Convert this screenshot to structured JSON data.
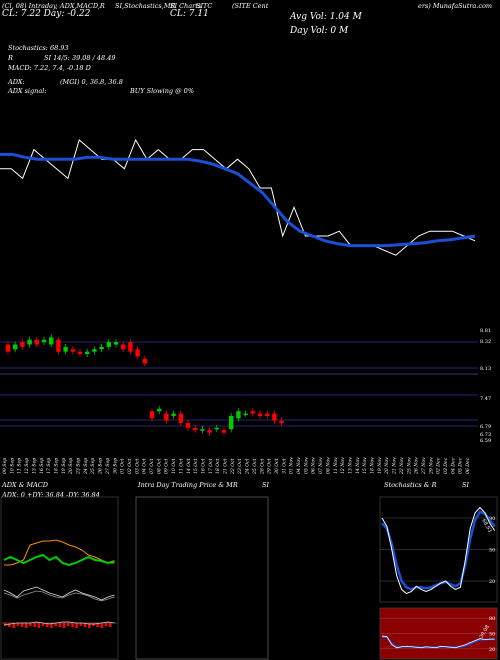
{
  "header": {
    "line1_left": "(Cl, 08) Intraday, ADX,MACD,R",
    "line1_mid1": "SI,Stochastics,MR",
    "line1_mid2": "SI Charts",
    "line1_mid3": "SITC",
    "line1_mid4": "(SITE Cent",
    "line1_right": "ers) MunafaSutra.com",
    "line2_left": "CL: 7.22  Day: -0.22",
    "line2_mid": "CL: 7.11",
    "avg_vol": "Avg Vol: 1.04  M",
    "day_vol": "Day Vol: 0  M",
    "stoch": "Stochastics: 68.93",
    "rsi_label": "R",
    "rsi": "SI 14/5: 39.08 / 48.49",
    "macd": "MACD: 7.22, 7.4, -0.18  D",
    "adx_label": "ADX:",
    "adx_mgi": "(MGI) 0, 36.8, 36.8",
    "adx_signal": "ADX signal:",
    "signal": "BUY Slowing @ 0%"
  },
  "price_axis": [
    "8.81",
    "8.32",
    "8.13",
    "7.47",
    "6.79",
    "6.73",
    "6.59"
  ],
  "dates": [
    "09 Sep",
    "10 Sep",
    "11 Sep",
    "12 Sep",
    "13 Sep",
    "16 Sep",
    "17 Sep",
    "18 Sep",
    "19 Sep",
    "20 Sep",
    "23 Sep",
    "24 Sep",
    "25 Sep",
    "26 Sep",
    "27 Sep",
    "30 Sep",
    "01 Oct",
    "02 Oct",
    "03 Oct",
    "04 Oct",
    "07 Oct",
    "08 Oct",
    "09 Oct",
    "10 Oct",
    "11 Oct",
    "14 Oct",
    "15 Oct",
    "16 Oct",
    "17 Oct",
    "18 Oct",
    "21 Oct",
    "22 Oct",
    "23 Oct",
    "24 Oct",
    "25 Oct",
    "28 Oct",
    "29 Oct",
    "30 Oct",
    "31 Oct",
    "01 Nov",
    "04 Nov",
    "05 Nov",
    "06 Nov",
    "07 Nov",
    "08 Nov",
    "11 Nov",
    "12 Nov",
    "13 Nov",
    "14 Nov",
    "15 Nov",
    "18 Nov",
    "19 Nov",
    "20 Nov",
    "21 Nov",
    "22 Nov",
    "25 Nov",
    "26 Nov",
    "27 Nov",
    "29 Nov",
    "02 Dec",
    "03 Dec",
    "04 Dec",
    "05 Dec",
    "06 Dec"
  ],
  "panels": {
    "adx_title": "ADX & MACD",
    "adx_vals": "ADX: 0  +DY: 36.84  -DY: 36.84",
    "mrsi_title": "Intra Day Trading Price & MR",
    "mrsi_title2": "SI",
    "stoch_title": "Stochastics & R",
    "stoch_title2": "SI",
    "stoch_ticks": [
      "80",
      "50",
      "20"
    ],
    "rsi_ticks": [
      "80",
      "50",
      "20"
    ],
    "stoch_val": "68.93",
    "rsi_val": "39.08"
  },
  "colors": {
    "up": "#00cc00",
    "down": "#ff0000",
    "ma": "#1a4fd6",
    "grid": "#333399",
    "rsi_bg": "#8b0000"
  },
  "chart_data": [
    {
      "type": "line",
      "title": "SITC price with moving average",
      "series": [
        {
          "name": "close",
          "values": [
            9.0,
            9.0,
            8.9,
            9.2,
            9.1,
            9.0,
            8.9,
            9.3,
            9.2,
            9.1,
            9.1,
            9.0,
            9.3,
            9.1,
            9.2,
            9.1,
            9.1,
            9.2,
            9.2,
            9.1,
            9.0,
            9.1,
            9.0,
            8.8,
            8.8,
            8.3,
            8.6,
            8.3,
            8.3,
            8.3,
            8.35,
            8.2,
            8.2,
            8.2,
            8.15,
            8.1,
            8.2,
            8.3,
            8.35,
            8.35,
            8.35,
            8.3,
            8.25
          ]
        },
        {
          "name": "ma",
          "values": [
            9.15,
            9.15,
            9.12,
            9.1,
            9.1,
            9.1,
            9.1,
            9.12,
            9.12,
            9.1,
            9.1,
            9.1,
            9.1,
            9.1,
            9.1,
            9.1,
            9.08,
            9.05,
            9.0,
            8.95,
            8.85,
            8.75,
            8.6,
            8.45,
            8.35,
            8.3,
            8.25,
            8.22,
            8.2,
            8.2,
            8.2,
            8.2,
            8.21,
            8.22,
            8.23,
            8.25,
            8.26,
            8.28,
            8.3
          ]
        }
      ]
    },
    {
      "type": "bar",
      "title": "candles",
      "open": [
        8.7,
        8.6,
        8.75,
        8.7,
        8.8,
        8.75,
        8.7,
        8.8,
        8.55,
        8.6,
        8.55,
        8.5,
        8.55,
        8.6,
        8.65,
        8.7,
        8.7,
        8.75,
        8.6,
        8.4,
        7.3,
        7.3,
        7.25,
        7.2,
        7.25,
        7.05,
        6.95,
        6.9,
        6.9,
        6.92,
        6.9,
        6.92,
        7.15,
        7.25,
        7.3,
        7.25,
        7.25,
        7.25,
        7.1
      ],
      "close": [
        8.55,
        8.7,
        8.65,
        8.8,
        8.7,
        8.8,
        8.85,
        8.55,
        8.65,
        8.55,
        8.5,
        8.55,
        8.6,
        8.65,
        8.75,
        8.75,
        8.6,
        8.55,
        8.45,
        8.3,
        7.15,
        7.35,
        7.1,
        7.25,
        7.05,
        6.95,
        6.9,
        6.92,
        6.85,
        6.95,
        6.85,
        7.2,
        7.3,
        7.25,
        7.25,
        7.2,
        7.2,
        7.1,
        7.05
      ]
    }
  ]
}
